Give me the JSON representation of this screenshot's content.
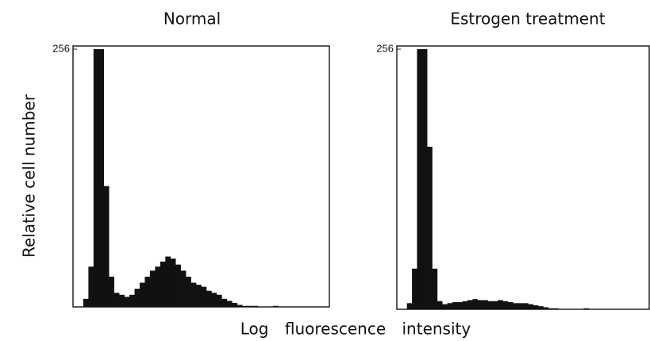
{
  "y_label": "Relative cell number",
  "x_label": "Log fluorescence intensity",
  "chart_data": [
    {
      "type": "histogram",
      "title": "Normal",
      "color": "#111111",
      "bins": [
        0,
        1,
        2,
        3,
        4,
        5,
        6,
        7,
        8,
        9,
        10,
        11,
        12,
        13,
        14,
        15,
        16,
        17,
        18,
        19,
        20,
        21,
        22,
        23,
        24,
        25,
        26,
        27,
        28,
        29,
        30,
        31,
        32,
        33,
        34,
        35,
        36,
        37,
        38,
        39,
        40,
        41,
        42,
        43,
        44,
        45,
        46,
        47,
        48,
        49,
        50
      ],
      "values": [
        0,
        0,
        8,
        40,
        256,
        256,
        120,
        30,
        14,
        12,
        10,
        12,
        18,
        24,
        30,
        36,
        40,
        45,
        50,
        48,
        42,
        36,
        30,
        24,
        22,
        20,
        16,
        14,
        12,
        8,
        6,
        4,
        2,
        1,
        1,
        1,
        0,
        0,
        0,
        1,
        0,
        0,
        0,
        0,
        0,
        0,
        0,
        0,
        0,
        0
      ],
      "xlim": [
        0,
        50
      ],
      "ylim": [
        0,
        256
      ],
      "yticks": [
        256
      ]
    },
    {
      "type": "histogram",
      "title": "Estrogen treatment",
      "color": "#111111",
      "bins": [
        0,
        1,
        2,
        3,
        4,
        5,
        6,
        7,
        8,
        9,
        10,
        11,
        12,
        13,
        14,
        15,
        16,
        17,
        18,
        19,
        20,
        21,
        22,
        23,
        24,
        25,
        26,
        27,
        28,
        29,
        30,
        31,
        32,
        33,
        34,
        35,
        36,
        37,
        38,
        39,
        40,
        41,
        42,
        43,
        44,
        45,
        46,
        47,
        48,
        49,
        50
      ],
      "values": [
        0,
        0,
        6,
        40,
        256,
        256,
        160,
        40,
        8,
        5,
        6,
        7,
        7,
        8,
        9,
        10,
        9,
        9,
        8,
        8,
        9,
        8,
        7,
        6,
        6,
        6,
        5,
        4,
        3,
        2,
        1,
        1,
        0,
        0,
        0,
        0,
        0,
        1,
        0,
        0,
        0,
        0,
        0,
        0,
        0,
        0,
        0,
        0,
        0,
        0
      ],
      "xlim": [
        0,
        50
      ],
      "ylim": [
        0,
        256
      ],
      "yticks": [
        256
      ]
    }
  ]
}
